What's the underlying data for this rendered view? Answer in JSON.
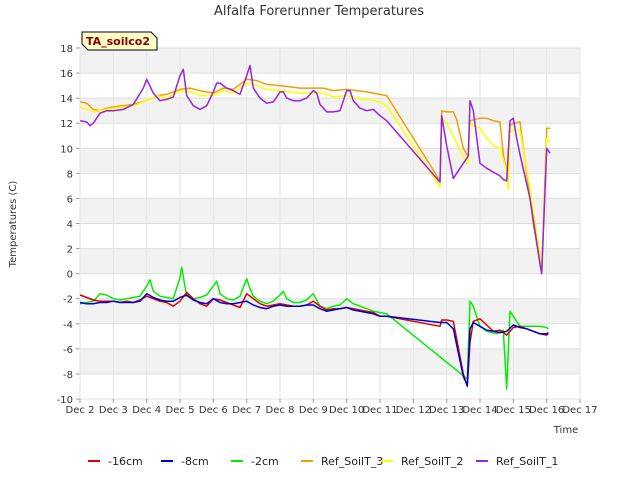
{
  "chart_data": {
    "type": "line",
    "title": "Alfalfa Forerunner Temperatures",
    "xlabel": "Time",
    "ylabel": "Temperatures (C)",
    "tag": "TA_soilco2",
    "xlim": [
      2,
      17
    ],
    "ylim": [
      -10,
      18
    ],
    "x_ticks": [
      2,
      3,
      4,
      5,
      6,
      7,
      8,
      9,
      10,
      11,
      12,
      13,
      14,
      15,
      16,
      17
    ],
    "x_tick_labels": [
      "Dec 2",
      "Dec 3",
      "Dec 4",
      "Dec 5",
      "Dec 6",
      "Dec 7",
      "Dec 8",
      "Dec 9",
      "Dec 10",
      "Dec 11",
      "Dec 12",
      "Dec 13",
      "Dec 14",
      "Dec 15",
      "Dec 16",
      "Dec 17"
    ],
    "y_ticks": [
      -10,
      -8,
      -6,
      -4,
      -2,
      0,
      2,
      4,
      6,
      8,
      10,
      12,
      14,
      16,
      18
    ],
    "legend_position": "bottom",
    "series": [
      {
        "name": "-16cm",
        "color": "#dd0000",
        "x": [
          2.0,
          2.2,
          2.4,
          2.6,
          2.8,
          3.0,
          3.2,
          3.4,
          3.6,
          3.8,
          4.0,
          4.2,
          4.4,
          4.6,
          4.8,
          5.0,
          5.2,
          5.4,
          5.6,
          5.8,
          6.0,
          6.2,
          6.4,
          6.6,
          6.8,
          7.0,
          7.2,
          7.4,
          7.6,
          7.8,
          8.0,
          8.2,
          8.4,
          8.6,
          8.8,
          9.0,
          9.2,
          9.4,
          9.6,
          9.8,
          10.0,
          10.2,
          10.4,
          10.6,
          10.8,
          11.0,
          11.2,
          12.8,
          12.85,
          13.0,
          13.2,
          13.5,
          13.62,
          13.7,
          13.8,
          14.0,
          14.2,
          14.4,
          14.6,
          14.8,
          15.0,
          15.2,
          15.4,
          15.6,
          15.8,
          16.0,
          16.05
        ],
        "y": [
          -1.7,
          -1.9,
          -2.1,
          -2.2,
          -2.2,
          -2.2,
          -2.3,
          -2.2,
          -2.3,
          -2.1,
          -1.8,
          -2.0,
          -2.2,
          -2.3,
          -2.6,
          -2.2,
          -1.5,
          -2.0,
          -2.4,
          -2.6,
          -2.0,
          -2.1,
          -2.3,
          -2.5,
          -2.7,
          -1.6,
          -2.0,
          -2.4,
          -2.6,
          -2.5,
          -2.4,
          -2.5,
          -2.6,
          -2.6,
          -2.5,
          -2.2,
          -2.6,
          -2.9,
          -2.8,
          -2.8,
          -2.7,
          -2.8,
          -2.9,
          -3.0,
          -3.1,
          -3.4,
          -3.4,
          -4.2,
          -3.7,
          -3.7,
          -3.8,
          -8.0,
          -9.0,
          -5.5,
          -3.8,
          -3.6,
          -4.1,
          -4.6,
          -4.5,
          -4.9,
          -4.3,
          -4.2,
          -4.4,
          -4.6,
          -4.8,
          -4.9,
          -4.8
        ]
      },
      {
        "name": "-8cm",
        "color": "#0000cc",
        "x": [
          2.0,
          2.2,
          2.4,
          2.6,
          2.8,
          3.0,
          3.2,
          3.4,
          3.6,
          3.8,
          4.0,
          4.2,
          4.4,
          4.6,
          4.8,
          5.0,
          5.2,
          5.4,
          5.6,
          5.8,
          6.0,
          6.2,
          6.4,
          6.6,
          6.8,
          7.0,
          7.2,
          7.4,
          7.6,
          7.8,
          8.0,
          8.2,
          8.4,
          8.6,
          8.8,
          9.0,
          9.2,
          9.4,
          9.6,
          9.8,
          10.0,
          10.2,
          10.4,
          10.6,
          10.8,
          11.0,
          11.2,
          12.8,
          13.0,
          13.2,
          13.5,
          13.62,
          13.7,
          13.8,
          14.0,
          14.2,
          14.4,
          14.6,
          14.8,
          15.0,
          15.2,
          15.4,
          15.6,
          15.8,
          16.0,
          16.05
        ],
        "y": [
          -2.3,
          -2.4,
          -2.4,
          -2.3,
          -2.3,
          -2.2,
          -2.3,
          -2.3,
          -2.3,
          -2.2,
          -1.6,
          -1.9,
          -2.1,
          -2.2,
          -2.2,
          -1.9,
          -1.7,
          -2.1,
          -2.3,
          -2.4,
          -2.0,
          -2.3,
          -2.4,
          -2.4,
          -2.3,
          -2.2,
          -2.5,
          -2.7,
          -2.8,
          -2.6,
          -2.5,
          -2.6,
          -2.6,
          -2.6,
          -2.5,
          -2.5,
          -2.8,
          -3.0,
          -2.9,
          -2.8,
          -2.7,
          -2.9,
          -3.0,
          -3.1,
          -3.2,
          -3.4,
          -3.4,
          -3.9,
          -3.9,
          -4.4,
          -8.2,
          -8.9,
          -4.4,
          -3.9,
          -4.2,
          -4.5,
          -4.6,
          -4.7,
          -4.6,
          -4.1,
          -4.3,
          -4.4,
          -4.6,
          -4.8,
          -4.8,
          -4.7
        ]
      },
      {
        "name": "-2cm",
        "color": "#00ee00",
        "x": [
          2.0,
          2.2,
          2.4,
          2.6,
          2.8,
          3.0,
          3.2,
          3.4,
          3.6,
          3.8,
          4.0,
          4.1,
          4.2,
          4.4,
          4.6,
          4.8,
          5.0,
          5.05,
          5.2,
          5.4,
          5.6,
          5.8,
          6.0,
          6.1,
          6.2,
          6.4,
          6.6,
          6.8,
          7.0,
          7.1,
          7.2,
          7.4,
          7.6,
          7.8,
          8.0,
          8.1,
          8.2,
          8.4,
          8.6,
          8.8,
          9.0,
          9.2,
          9.4,
          9.6,
          9.8,
          10.0,
          10.2,
          10.4,
          10.6,
          10.8,
          11.0,
          11.2,
          13.62,
          13.7,
          13.8,
          14.0,
          14.2,
          14.5,
          14.7,
          14.8,
          14.9,
          15.0,
          15.2,
          15.5,
          15.8,
          16.0,
          16.05
        ],
        "y": [
          -2.4,
          -2.3,
          -2.2,
          -1.6,
          -1.7,
          -2.0,
          -2.1,
          -2.0,
          -1.9,
          -1.8,
          -1.0,
          -0.5,
          -1.4,
          -1.8,
          -1.9,
          -2.0,
          -0.3,
          0.5,
          -1.8,
          -2.0,
          -1.9,
          -1.7,
          -1.0,
          -0.6,
          -1.6,
          -2.0,
          -2.1,
          -1.8,
          -0.4,
          -1.2,
          -1.8,
          -2.2,
          -2.4,
          -2.2,
          -1.7,
          -1.4,
          -2.0,
          -2.3,
          -2.3,
          -2.1,
          -1.6,
          -2.6,
          -2.8,
          -2.6,
          -2.5,
          -2.0,
          -2.4,
          -2.6,
          -2.8,
          -3.0,
          -3.1,
          -3.2,
          -8.4,
          -2.2,
          -2.6,
          -4.2,
          -4.6,
          -4.8,
          -4.5,
          -9.2,
          -3.0,
          -3.4,
          -4.2,
          -4.2,
          -4.2,
          -4.3,
          -4.4
        ]
      },
      {
        "name": "Ref_SoilT_3",
        "color": "#f0a000",
        "x": [
          2.0,
          2.2,
          2.4,
          2.6,
          2.8,
          3.0,
          3.3,
          3.6,
          4.0,
          4.3,
          4.6,
          5.0,
          5.3,
          5.6,
          6.0,
          6.3,
          6.6,
          7.0,
          7.3,
          7.6,
          8.0,
          8.3,
          8.6,
          9.0,
          9.3,
          9.6,
          10.0,
          10.3,
          10.6,
          11.0,
          11.2,
          12.8,
          12.85,
          13.0,
          13.2,
          13.3,
          13.5,
          13.65,
          13.7,
          14.0,
          14.2,
          14.4,
          14.6,
          14.7,
          14.85,
          14.9,
          15.0,
          15.2,
          15.4,
          15.6,
          15.8,
          15.85,
          16.0,
          16.1
        ],
        "y": [
          13.7,
          13.6,
          13.1,
          13.0,
          13.2,
          13.3,
          13.4,
          13.5,
          13.8,
          14.2,
          14.3,
          14.7,
          14.8,
          14.6,
          14.4,
          14.8,
          14.7,
          15.5,
          15.4,
          15.1,
          15.0,
          14.9,
          14.8,
          14.8,
          14.8,
          14.6,
          14.7,
          14.6,
          14.5,
          14.3,
          14.2,
          7.4,
          13.0,
          12.9,
          12.9,
          12.3,
          10.0,
          9.3,
          12.2,
          12.4,
          12.4,
          12.2,
          12.1,
          9.5,
          7.6,
          11.8,
          12.0,
          12.1,
          8.0,
          4.0,
          0.8,
          0.0,
          11.6,
          11.6
        ]
      },
      {
        "name": "Ref_SoilT_2",
        "color": "#ffff00",
        "x": [
          2.0,
          2.2,
          2.4,
          2.6,
          2.8,
          3.0,
          3.3,
          3.6,
          4.0,
          4.3,
          4.6,
          5.0,
          5.3,
          5.6,
          6.0,
          6.3,
          6.6,
          7.0,
          7.3,
          7.6,
          8.0,
          8.3,
          8.6,
          9.0,
          9.3,
          9.6,
          10.0,
          10.3,
          10.6,
          11.0,
          11.2,
          12.8,
          12.85,
          13.0,
          13.2,
          13.4,
          13.6,
          13.65,
          13.7,
          14.0,
          14.2,
          14.4,
          14.6,
          14.8,
          14.85,
          14.9,
          15.0,
          15.2,
          15.5,
          15.8,
          15.85,
          16.0,
          16.1
        ],
        "y": [
          13.3,
          13.1,
          12.9,
          13.0,
          13.1,
          13.2,
          13.3,
          13.4,
          13.8,
          14.2,
          14.0,
          14.6,
          14.5,
          14.2,
          14.2,
          14.6,
          14.4,
          15.2,
          15.0,
          14.7,
          14.6,
          14.5,
          14.4,
          14.4,
          14.4,
          14.1,
          14.2,
          14.0,
          13.9,
          13.7,
          13.4,
          6.9,
          12.4,
          12.0,
          11.0,
          9.8,
          8.8,
          8.8,
          11.9,
          11.6,
          10.8,
          10.2,
          10.0,
          8.2,
          6.7,
          11.2,
          11.5,
          11.4,
          6.8,
          1.5,
          0.0,
          10.8,
          10.5
        ]
      },
      {
        "name": "Ref_SoilT_1",
        "color": "#9922dd",
        "x": [
          2.0,
          2.2,
          2.3,
          2.4,
          2.6,
          2.8,
          3.0,
          3.3,
          3.6,
          3.9,
          4.0,
          4.2,
          4.4,
          4.6,
          4.8,
          5.0,
          5.1,
          5.2,
          5.4,
          5.6,
          5.8,
          6.0,
          6.1,
          6.2,
          6.4,
          6.6,
          6.8,
          7.0,
          7.1,
          7.2,
          7.4,
          7.6,
          7.8,
          8.0,
          8.1,
          8.2,
          8.4,
          8.6,
          8.8,
          9.0,
          9.1,
          9.2,
          9.4,
          9.6,
          9.8,
          10.0,
          10.1,
          10.2,
          10.4,
          10.6,
          10.8,
          11.0,
          11.2,
          12.8,
          12.85,
          13.0,
          13.2,
          13.4,
          13.6,
          13.65,
          13.7,
          13.8,
          14.0,
          14.2,
          14.4,
          14.6,
          14.7,
          14.8,
          14.9,
          15.0,
          15.1,
          15.2,
          15.5,
          15.8,
          15.85,
          16.0,
          16.1
        ],
        "y": [
          12.2,
          12.1,
          11.8,
          12.0,
          12.8,
          13.0,
          13.0,
          13.1,
          13.5,
          14.8,
          15.5,
          14.4,
          13.8,
          13.9,
          14.1,
          15.8,
          16.3,
          14.2,
          13.4,
          13.1,
          13.4,
          14.5,
          15.2,
          15.2,
          14.8,
          14.6,
          14.3,
          15.8,
          16.6,
          14.8,
          14.0,
          13.6,
          13.7,
          14.5,
          14.5,
          14.0,
          13.8,
          13.8,
          14.0,
          14.6,
          14.4,
          13.5,
          12.9,
          12.9,
          13.0,
          14.6,
          14.6,
          13.8,
          13.2,
          13.0,
          13.1,
          12.6,
          12.2,
          7.3,
          12.6,
          10.2,
          7.6,
          8.4,
          9.2,
          9.4,
          13.8,
          13.0,
          8.8,
          8.4,
          8.1,
          7.8,
          7.5,
          7.4,
          12.2,
          12.4,
          10.8,
          9.5,
          6.0,
          0.8,
          0.0,
          10.0,
          9.6
        ]
      }
    ]
  }
}
